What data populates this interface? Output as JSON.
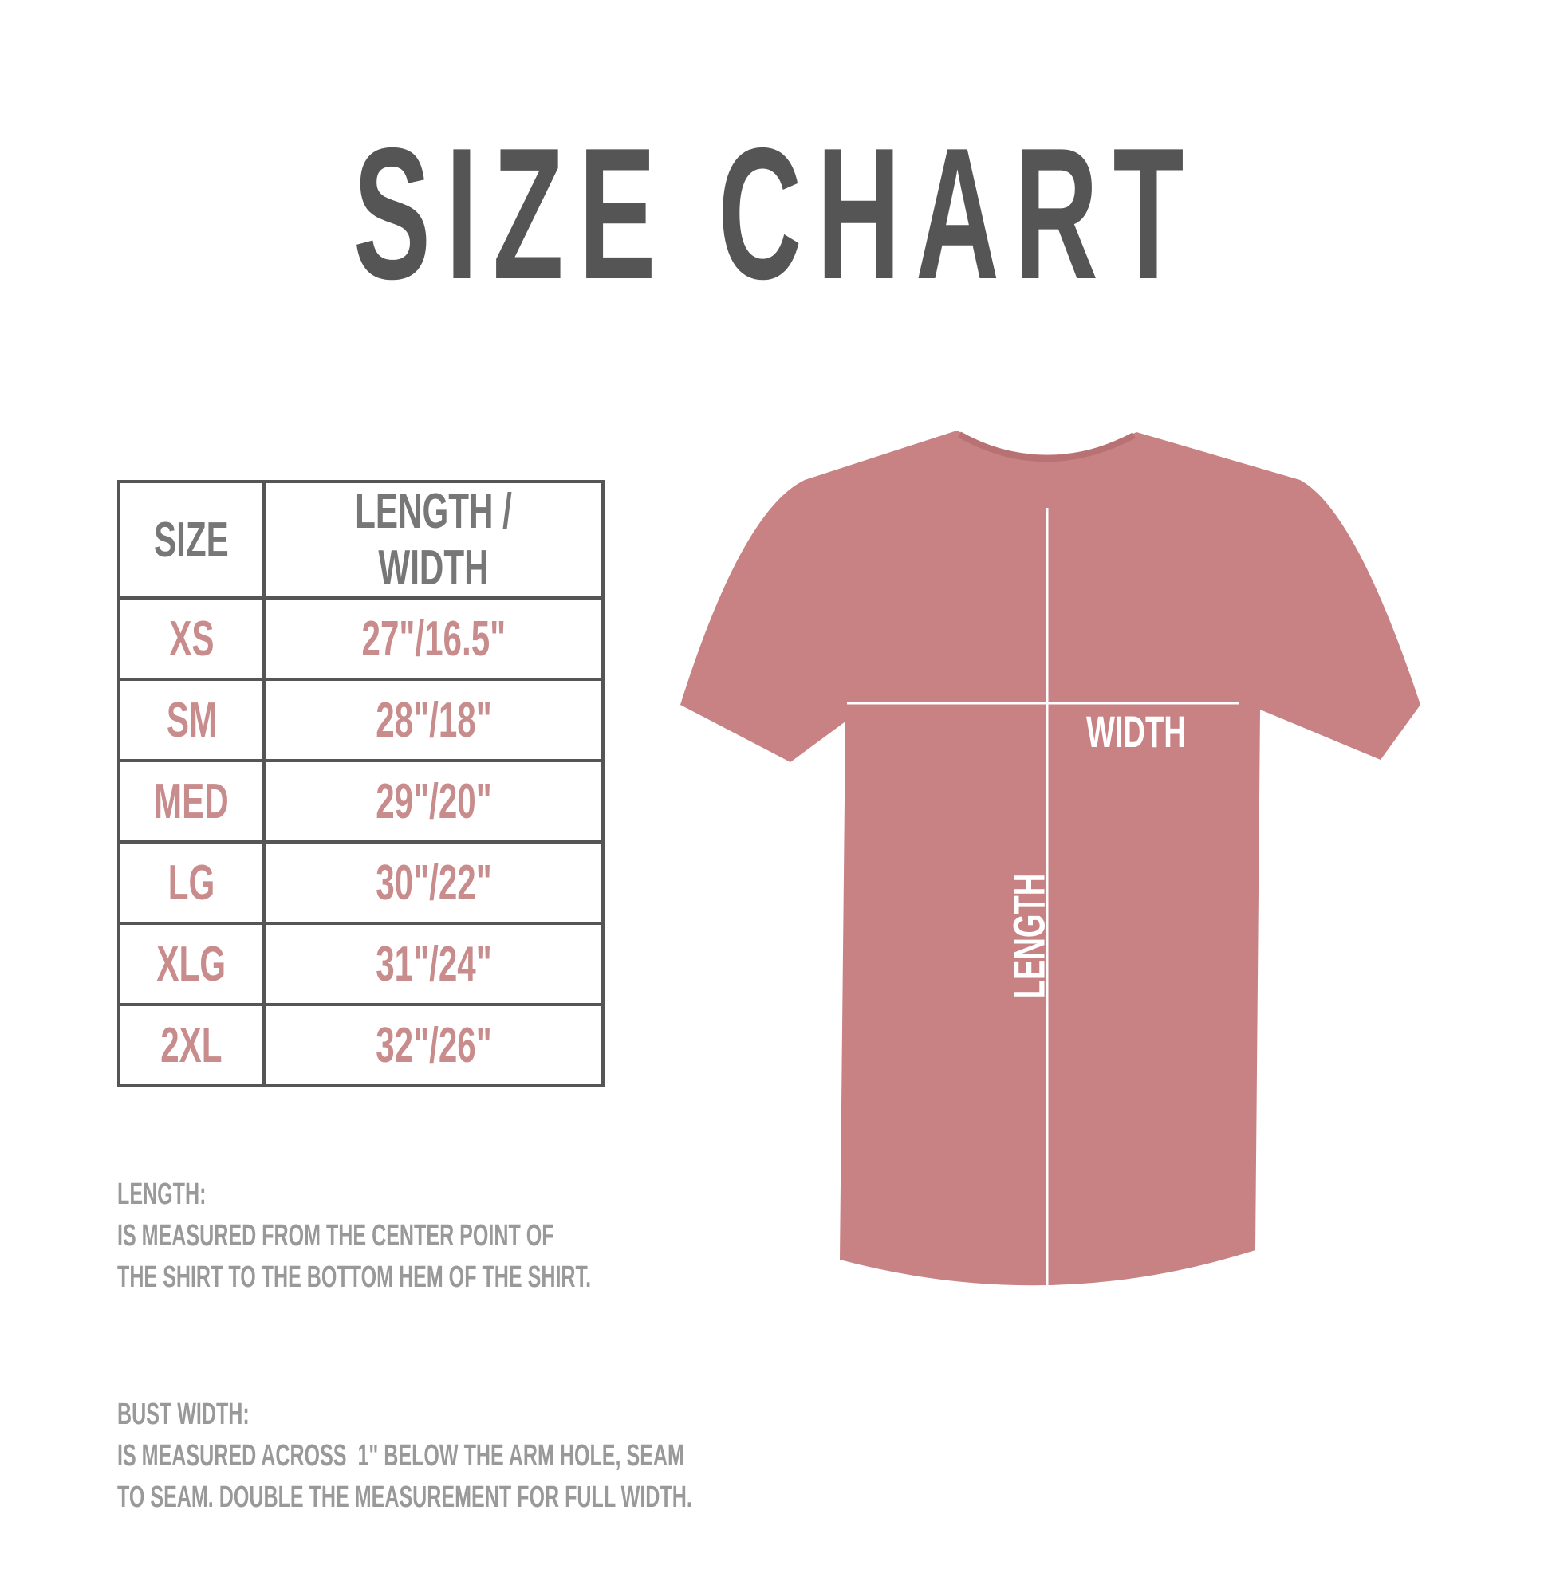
{
  "title": "SIZE CHART",
  "table": {
    "headers": [
      "SIZE",
      "LENGTH / WIDTH"
    ],
    "rows": [
      {
        "size": "XS",
        "measure": "27\"/16.5\""
      },
      {
        "size": "SM",
        "measure": "28\"/18\""
      },
      {
        "size": "MED",
        "measure": "29\"/20\""
      },
      {
        "size": "LG",
        "measure": "30\"/22\""
      },
      {
        "size": "XLG",
        "measure": "31\"/24\""
      },
      {
        "size": "2XL",
        "measure": "32\"/26\""
      }
    ]
  },
  "notes": {
    "length_title": "LENGTH:",
    "length_line1": "IS MEASURED FROM THE CENTER POINT OF",
    "length_line2": "THE SHIRT TO THE BOTTOM HEM OF THE SHIRT.",
    "width_title": "BUST WIDTH:",
    "width_line1": "IS MEASURED ACROSS  1\" BELOW THE ARM HOLE, SEAM",
    "width_line2": "TO SEAM. DOUBLE THE MEASUREMENT FOR FULL WIDTH."
  },
  "shirt": {
    "color": "#c88284",
    "width_label": "WIDTH",
    "length_label": "LENGTH"
  }
}
